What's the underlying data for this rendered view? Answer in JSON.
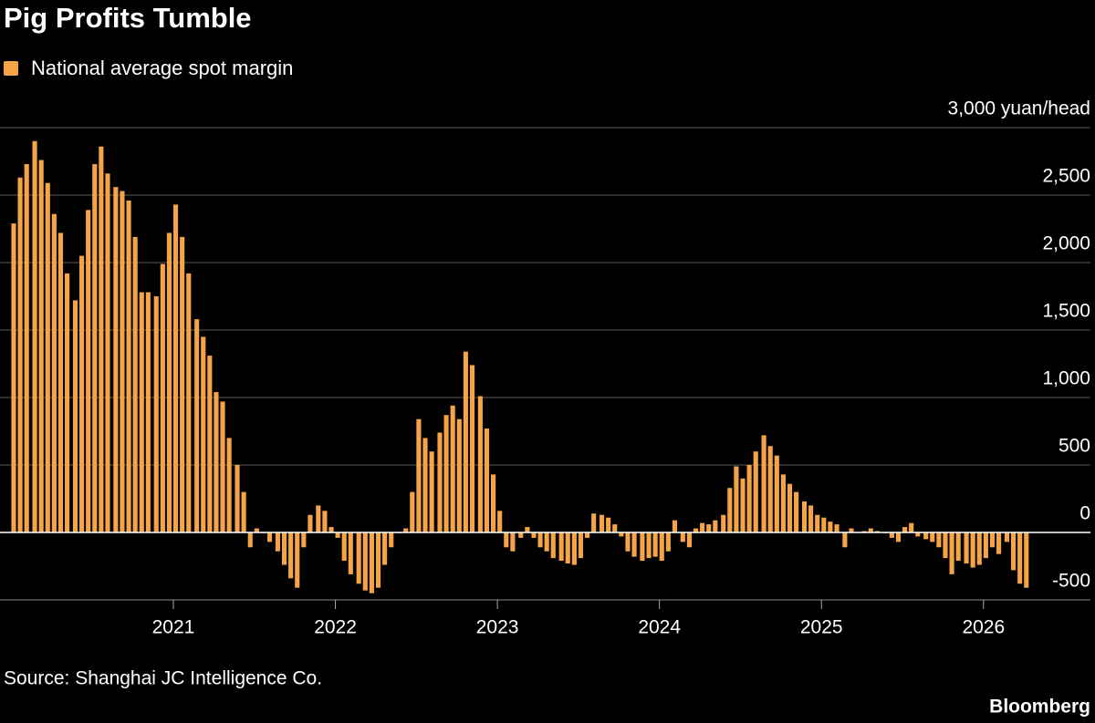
{
  "chart_data": {
    "type": "bar",
    "title": "Pig Profits Tumble",
    "source": "Source: Shanghai JC Intelligence Co.",
    "credit": "Bloomberg",
    "legend": "top-left",
    "grid": true,
    "xlim": [
      2019.93,
      2026.66
    ],
    "xticks": [
      2021,
      2022,
      2023,
      2024,
      2025,
      2026
    ],
    "ylim": [
      -500,
      3000
    ],
    "yticks": [
      -500,
      0,
      500,
      {
        "value": 1000,
        "label": "1,000"
      },
      {
        "value": 1500,
        "label": "1,500"
      },
      {
        "value": 2000,
        "label": "2,000"
      },
      {
        "value": 2500,
        "label": "2,500"
      },
      {
        "value": 3000,
        "label": "3,000 yuan/head"
      }
    ],
    "x": [
      2020.0,
      2020.04,
      2020.08,
      2020.13,
      2020.17,
      2020.21,
      2020.25,
      2020.29,
      2020.33,
      2020.38,
      2020.42,
      2020.46,
      2020.5,
      2020.54,
      2020.58,
      2020.63,
      2020.67,
      2020.71,
      2020.75,
      2020.79,
      2020.83,
      2020.88,
      2020.92,
      2020.96,
      2021.0,
      2021.04,
      2021.08,
      2021.13,
      2021.17,
      2021.21,
      2021.25,
      2021.29,
      2021.33,
      2021.38,
      2021.42,
      2021.46,
      2021.5,
      2021.54,
      2021.58,
      2021.63,
      2021.67,
      2021.71,
      2021.75,
      2021.79,
      2021.83,
      2021.88,
      2021.92,
      2021.96,
      2022.0,
      2022.04,
      2022.08,
      2022.13,
      2022.17,
      2022.21,
      2022.25,
      2022.29,
      2022.33,
      2022.38,
      2022.42,
      2022.46,
      2022.5,
      2022.54,
      2022.58,
      2022.63,
      2022.67,
      2022.71,
      2022.75,
      2022.79,
      2022.83,
      2022.88,
      2022.92,
      2022.96,
      2023.0,
      2023.04,
      2023.08,
      2023.13,
      2023.17,
      2023.21,
      2023.25,
      2023.29,
      2023.33,
      2023.38,
      2023.42,
      2023.46,
      2023.5,
      2023.54,
      2023.58,
      2023.63,
      2023.67,
      2023.71,
      2023.75,
      2023.79,
      2023.83,
      2023.88,
      2023.92,
      2023.96,
      2024.0,
      2024.04,
      2024.08,
      2024.13,
      2024.17,
      2024.21,
      2024.25,
      2024.29,
      2024.33,
      2024.38,
      2024.42,
      2024.46,
      2024.5,
      2024.54,
      2024.58,
      2024.63,
      2024.67,
      2024.71,
      2024.75,
      2024.79,
      2024.83,
      2024.88,
      2024.92,
      2024.96,
      2025.0,
      2025.04,
      2025.08,
      2025.13,
      2025.17,
      2025.21,
      2025.25,
      2025.29,
      2025.33,
      2025.38,
      2025.42,
      2025.46,
      2025.5,
      2025.54,
      2025.58,
      2025.63,
      2025.67,
      2025.71,
      2025.75,
      2025.79,
      2025.83,
      2025.88,
      2025.92,
      2025.96,
      2026.0,
      2026.04,
      2026.08,
      2026.13,
      2026.17,
      2026.21,
      2026.25
    ],
    "series": [
      {
        "name": "National average spot margin",
        "color": "#f5a548",
        "values": [
          2290,
          2630,
          2730,
          2900,
          2760,
          2590,
          2360,
          2220,
          1920,
          1720,
          2050,
          2390,
          2730,
          2860,
          2660,
          2560,
          2530,
          2460,
          2190,
          1780,
          1780,
          1750,
          1990,
          2220,
          2430,
          2190,
          1920,
          1580,
          1450,
          1310,
          1040,
          970,
          700,
          500,
          300,
          -110,
          30,
          -5,
          -70,
          -140,
          -240,
          -340,
          -410,
          -110,
          130,
          200,
          160,
          40,
          -40,
          -210,
          -310,
          -380,
          -430,
          -450,
          -410,
          -240,
          -110,
          -5,
          30,
          300,
          840,
          700,
          600,
          740,
          870,
          940,
          840,
          1340,
          1240,
          1010,
          770,
          430,
          160,
          -110,
          -140,
          -40,
          40,
          -40,
          -110,
          -140,
          -190,
          -210,
          -230,
          -240,
          -190,
          -40,
          140,
          130,
          110,
          60,
          -30,
          -140,
          -180,
          -210,
          -190,
          -180,
          -210,
          -140,
          90,
          -70,
          -110,
          30,
          70,
          60,
          90,
          130,
          330,
          490,
          400,
          500,
          600,
          720,
          640,
          570,
          430,
          360,
          300,
          230,
          200,
          130,
          110,
          80,
          60,
          -110,
          30,
          0,
          10,
          30,
          10,
          -5,
          -40,
          -70,
          40,
          70,
          -30,
          -50,
          -70,
          -110,
          -190,
          -310,
          -210,
          -230,
          -260,
          -240,
          -190,
          -110,
          -160,
          -70,
          -280,
          -380,
          -410
        ]
      }
    ]
  }
}
